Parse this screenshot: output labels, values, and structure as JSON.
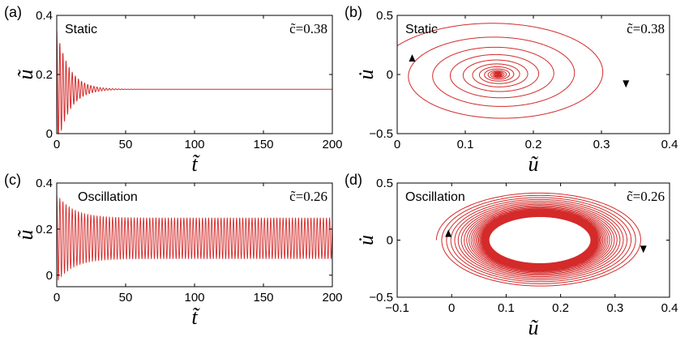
{
  "chart_data": [
    {
      "id": "a",
      "panel_label": "(a)",
      "type": "line",
      "regime": "Static",
      "param_label": "c̃=0.38",
      "xlabel": "t̃",
      "ylabel": "ũ",
      "xlim": [
        0,
        200
      ],
      "ylim": [
        0,
        0.4
      ],
      "xticks": [
        "0",
        "50",
        "100",
        "150",
        "200"
      ],
      "yticks": [
        "0",
        "0.2",
        "0.4"
      ],
      "series": [
        {
          "kind": "damped_oscillation",
          "start": 0.35,
          "equilibrium": 0.15,
          "period": 2.25,
          "decay_time": 9,
          "t_max": 200
        }
      ]
    },
    {
      "id": "b",
      "panel_label": "(b)",
      "type": "line",
      "regime": "Static",
      "param_label": "c̃=0.38",
      "xlabel": "ũ",
      "ylabel": "u̇",
      "xlim": [
        0,
        0.4
      ],
      "ylim": [
        -0.5,
        0.5
      ],
      "xticks": [
        "0",
        "0.1",
        "0.2",
        "0.3",
        "0.4"
      ],
      "yticks": [
        "−0.5",
        "0",
        "0.5"
      ],
      "series": [
        {
          "kind": "inward_spiral",
          "center": [
            0.148,
            0
          ],
          "start_radius_u": 0.18,
          "velocity_scale": 2.6,
          "end_radius_u": 0.003,
          "turns": 13
        }
      ],
      "arrows": [
        {
          "u": 0.022,
          "v": 0.13,
          "direction": "up"
        },
        {
          "u": 0.336,
          "v": -0.07,
          "direction": "down"
        }
      ]
    },
    {
      "id": "c",
      "panel_label": "(c)",
      "type": "line",
      "regime": "Oscillation",
      "param_label": "c̃=0.26",
      "xlabel": "t̃",
      "ylabel": "ũ",
      "xlim": [
        0,
        200
      ],
      "ylim": [
        -0.05,
        0.4
      ],
      "xticks": [
        "0",
        "50",
        "100",
        "150",
        "200"
      ],
      "yticks": [
        "0",
        "0.2",
        "0.4"
      ],
      "series": [
        {
          "kind": "limit_cycle_oscillation",
          "start": 0.35,
          "center": 0.16,
          "cycle_amplitude": 0.088,
          "period": 2.25,
          "decay_time": 12,
          "t_max": 200
        }
      ]
    },
    {
      "id": "d",
      "panel_label": "(d)",
      "type": "line",
      "regime": "Oscillation",
      "param_label": "c̃=0.26",
      "xlabel": "ũ",
      "ylabel": "u̇",
      "xlim": [
        -0.1,
        0.4
      ],
      "ylim": [
        -0.5,
        0.5
      ],
      "xticks": [
        "−0.1",
        "0",
        "0.1",
        "0.2",
        "0.3",
        "0.4"
      ],
      "yticks": [
        "−0.5",
        "0",
        "0.5"
      ],
      "series": [
        {
          "kind": "spiral_to_limit_cycle",
          "center": [
            0.162,
            0
          ],
          "start_radius_u": 0.19,
          "velocity_scale": 2.2,
          "cycle_radius_u": 0.092,
          "turns": 40
        }
      ],
      "arrows": [
        {
          "u": -0.006,
          "v": 0.05,
          "direction": "up"
        },
        {
          "u": 0.352,
          "v": -0.07,
          "direction": "down"
        }
      ]
    }
  ]
}
